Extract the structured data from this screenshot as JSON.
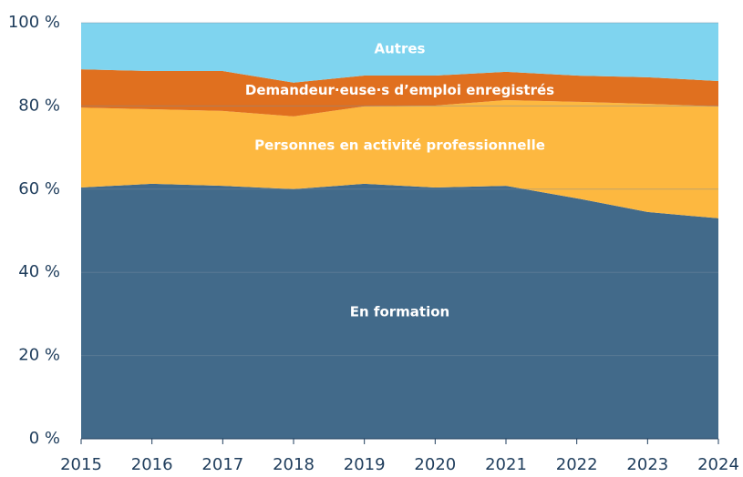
{
  "chart_data": {
    "type": "stacked_area",
    "x": [
      2015,
      2016,
      2017,
      2018,
      2019,
      2020,
      2021,
      2022,
      2023,
      2024
    ],
    "xlim": [
      2015,
      2024
    ],
    "xticks": [
      2015,
      2016,
      2017,
      2018,
      2019,
      2020,
      2021,
      2022,
      2023,
      2024
    ],
    "ylim": [
      0,
      100
    ],
    "yticks": [
      {
        "value": 0,
        "label": "0 %"
      },
      {
        "value": 20,
        "label": "20 %"
      },
      {
        "value": 40,
        "label": "40 %"
      },
      {
        "value": 60,
        "label": "60 %"
      },
      {
        "value": 80,
        "label": "80 %"
      },
      {
        "value": 100,
        "label": "100 %"
      }
    ],
    "grid": true,
    "series": [
      {
        "name": "En formation",
        "color": "#426a8a",
        "values": [
          60.4,
          61.3,
          60.8,
          60.0,
          61.3,
          60.4,
          60.8,
          57.8,
          54.5,
          53.0
        ]
      },
      {
        "name": "Personnes en activité professionnelle",
        "color": "#fdb840",
        "values": [
          19.2,
          17.9,
          18.0,
          17.5,
          18.6,
          19.7,
          20.6,
          23.2,
          26.0,
          26.9
        ]
      },
      {
        "name": "Demandeur·euse·s d’emploi enregistrés",
        "color": "#e0701f",
        "values": [
          9.2,
          9.2,
          9.6,
          8.1,
          7.4,
          7.2,
          6.8,
          6.3,
          6.4,
          6.1
        ]
      },
      {
        "name": "Autres",
        "color": "#7fd4ef",
        "values": [
          11.2,
          11.6,
          11.6,
          14.4,
          12.7,
          12.7,
          11.8,
          12.7,
          13.1,
          14.0
        ]
      }
    ]
  }
}
